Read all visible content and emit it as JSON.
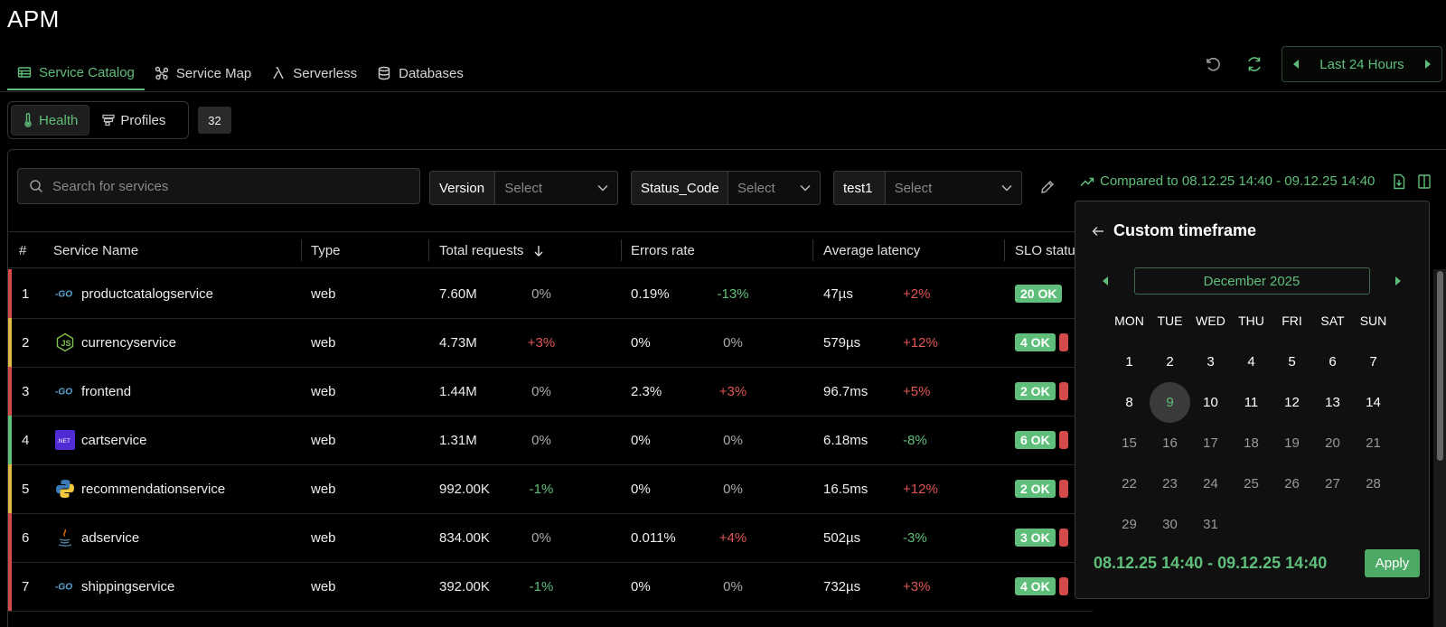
{
  "app": {
    "title": "APM"
  },
  "tabs": [
    {
      "label": "Service Catalog",
      "icon": "table-icon",
      "active": true
    },
    {
      "label": "Service Map",
      "icon": "graph-icon"
    },
    {
      "label": "Serverless",
      "icon": "lambda-icon"
    },
    {
      "label": "Databases",
      "icon": "database-icon"
    }
  ],
  "time_range": {
    "label": "Last 24 Hours"
  },
  "view_toggle": {
    "health_label": "Health",
    "profiles_label": "Profiles",
    "count": "32"
  },
  "search": {
    "placeholder": "Search for services"
  },
  "filters": [
    {
      "label": "Version",
      "placeholder": "Select"
    },
    {
      "label": "Status_Code",
      "placeholder": "Select"
    },
    {
      "label": "test1",
      "placeholder": "Select"
    }
  ],
  "compared": {
    "text": "Compared to 08.12.25 14:40 - 09.12.25 14:40"
  },
  "table": {
    "headers": {
      "index": "#",
      "name": "Service Name",
      "type": "Type",
      "requests": "Total requests",
      "errors": "Errors rate",
      "latency": "Average latency",
      "slo": "SLO status"
    },
    "rows": [
      {
        "idx": "1",
        "name": "productcatalogservice",
        "lang": "go",
        "type": "web",
        "req": "7.60M",
        "req_chg": "0%",
        "err": "0.19%",
        "err_chg": "-13%",
        "lat": "47µs",
        "lat_chg": "+2%",
        "slo": "20 OK",
        "bar": "#d24a4a"
      },
      {
        "idx": "2",
        "name": "currencyservice",
        "lang": "nodejs",
        "type": "web",
        "req": "4.73M",
        "req_chg": "+3%",
        "err": "0%",
        "err_chg": "0%",
        "lat": "579µs",
        "lat_chg": "+12%",
        "slo": "4 OK",
        "bar": "#e0b84a"
      },
      {
        "idx": "3",
        "name": "frontend",
        "lang": "go",
        "type": "web",
        "req": "1.44M",
        "req_chg": "0%",
        "err": "2.3%",
        "err_chg": "+3%",
        "lat": "96.7ms",
        "lat_chg": "+5%",
        "slo": "2 OK",
        "bar": "#d24a4a"
      },
      {
        "idx": "4",
        "name": "cartservice",
        "lang": "dotnet",
        "type": "web",
        "req": "1.31M",
        "req_chg": "0%",
        "err": "0%",
        "err_chg": "0%",
        "lat": "6.18ms",
        "lat_chg": "-8%",
        "slo": "6 OK",
        "bar": "#5fbf7a"
      },
      {
        "idx": "5",
        "name": "recommendationservice",
        "lang": "python",
        "type": "web",
        "req": "992.00K",
        "req_chg": "-1%",
        "err": "0%",
        "err_chg": "0%",
        "lat": "16.5ms",
        "lat_chg": "+12%",
        "slo": "2 OK",
        "bar": "#e0b84a"
      },
      {
        "idx": "6",
        "name": "adservice",
        "lang": "java",
        "type": "web",
        "req": "834.00K",
        "req_chg": "0%",
        "err": "0.011%",
        "err_chg": "+4%",
        "lat": "502µs",
        "lat_chg": "-3%",
        "slo": "3 OK",
        "bar": "#d24a4a"
      },
      {
        "idx": "7",
        "name": "shippingservice",
        "lang": "go",
        "type": "web",
        "req": "392.00K",
        "req_chg": "-1%",
        "err": "0%",
        "err_chg": "0%",
        "lat": "732µs",
        "lat_chg": "+3%",
        "slo": "4 OK",
        "bar": "#d24a4a"
      }
    ]
  },
  "calendar": {
    "title": "Custom timeframe",
    "month": "December 2025",
    "weekdays": [
      "MON",
      "TUE",
      "WED",
      "THU",
      "FRI",
      "SAT",
      "SUN"
    ],
    "today": "9",
    "range_text": "08.12.25 14:40 - 09.12.25 14:40",
    "apply_label": "Apply"
  },
  "colors": {
    "accent": "#5fbf7a",
    "error": "#d24a4a",
    "warning": "#e0b84a"
  }
}
